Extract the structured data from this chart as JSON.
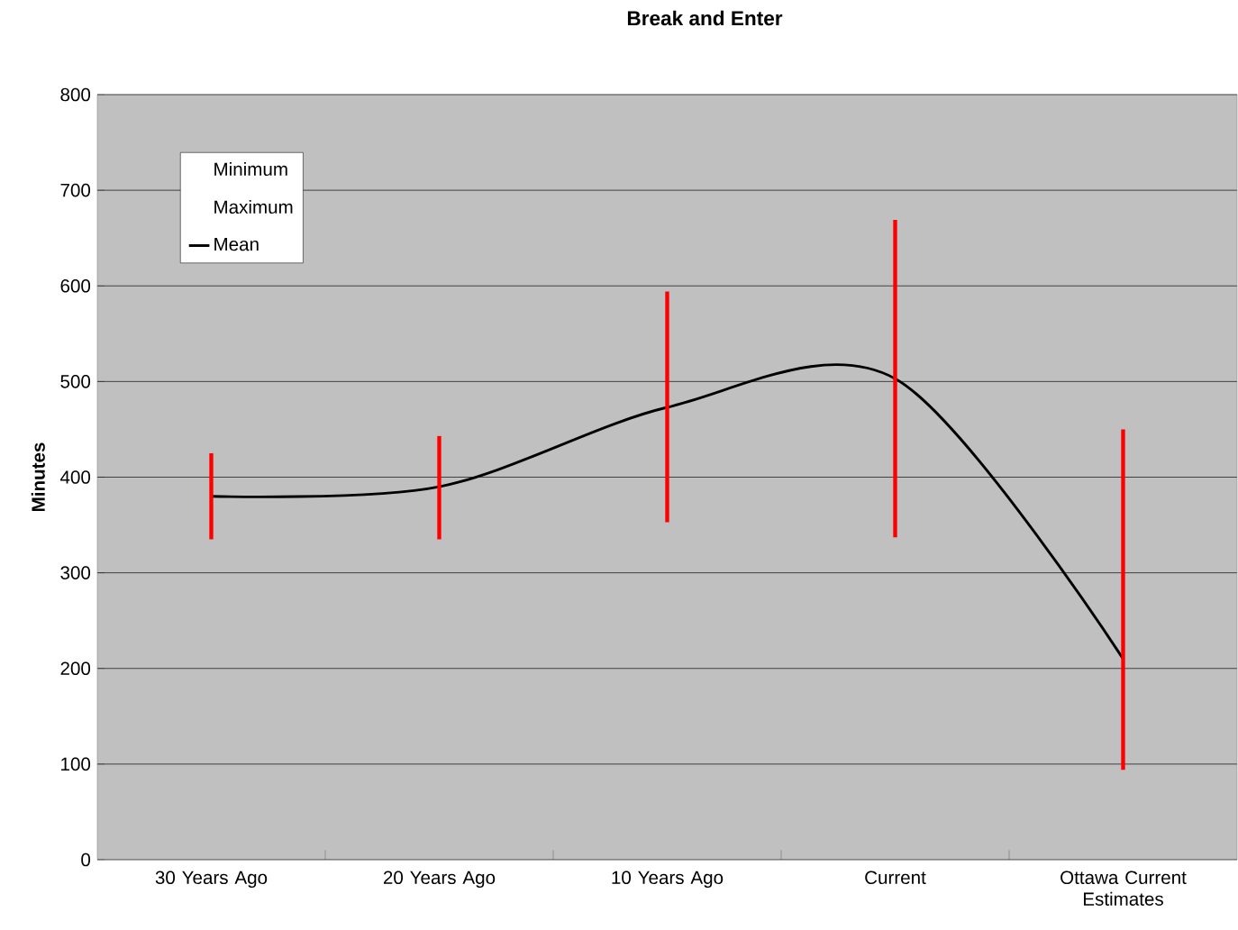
{
  "chart_data": {
    "type": "line",
    "title": "Break and Enter",
    "ylabel": "Minutes",
    "categories": [
      "30 Years Ago",
      "20 Years Ago",
      "10 Years Ago",
      "Current",
      "Ottawa Current Estimates"
    ],
    "series": [
      {
        "name": "Mean",
        "color": "#000000",
        "line_style": "solid",
        "values": [
          380,
          390,
          473,
          503,
          210
        ],
        "errors": [
          [
            335,
            425
          ],
          [
            335,
            443
          ],
          [
            353,
            594
          ],
          [
            337,
            669
          ],
          [
            94,
            450
          ]
        ]
      }
    ],
    "annotations": [
      "Minimum",
      "Maximum"
    ],
    "ylim": [
      0,
      800
    ],
    "yticks": [
      0,
      100,
      200,
      300,
      400,
      500,
      600,
      700,
      800
    ],
    "grid": "y",
    "legend": "top left",
    "marker": "none"
  }
}
